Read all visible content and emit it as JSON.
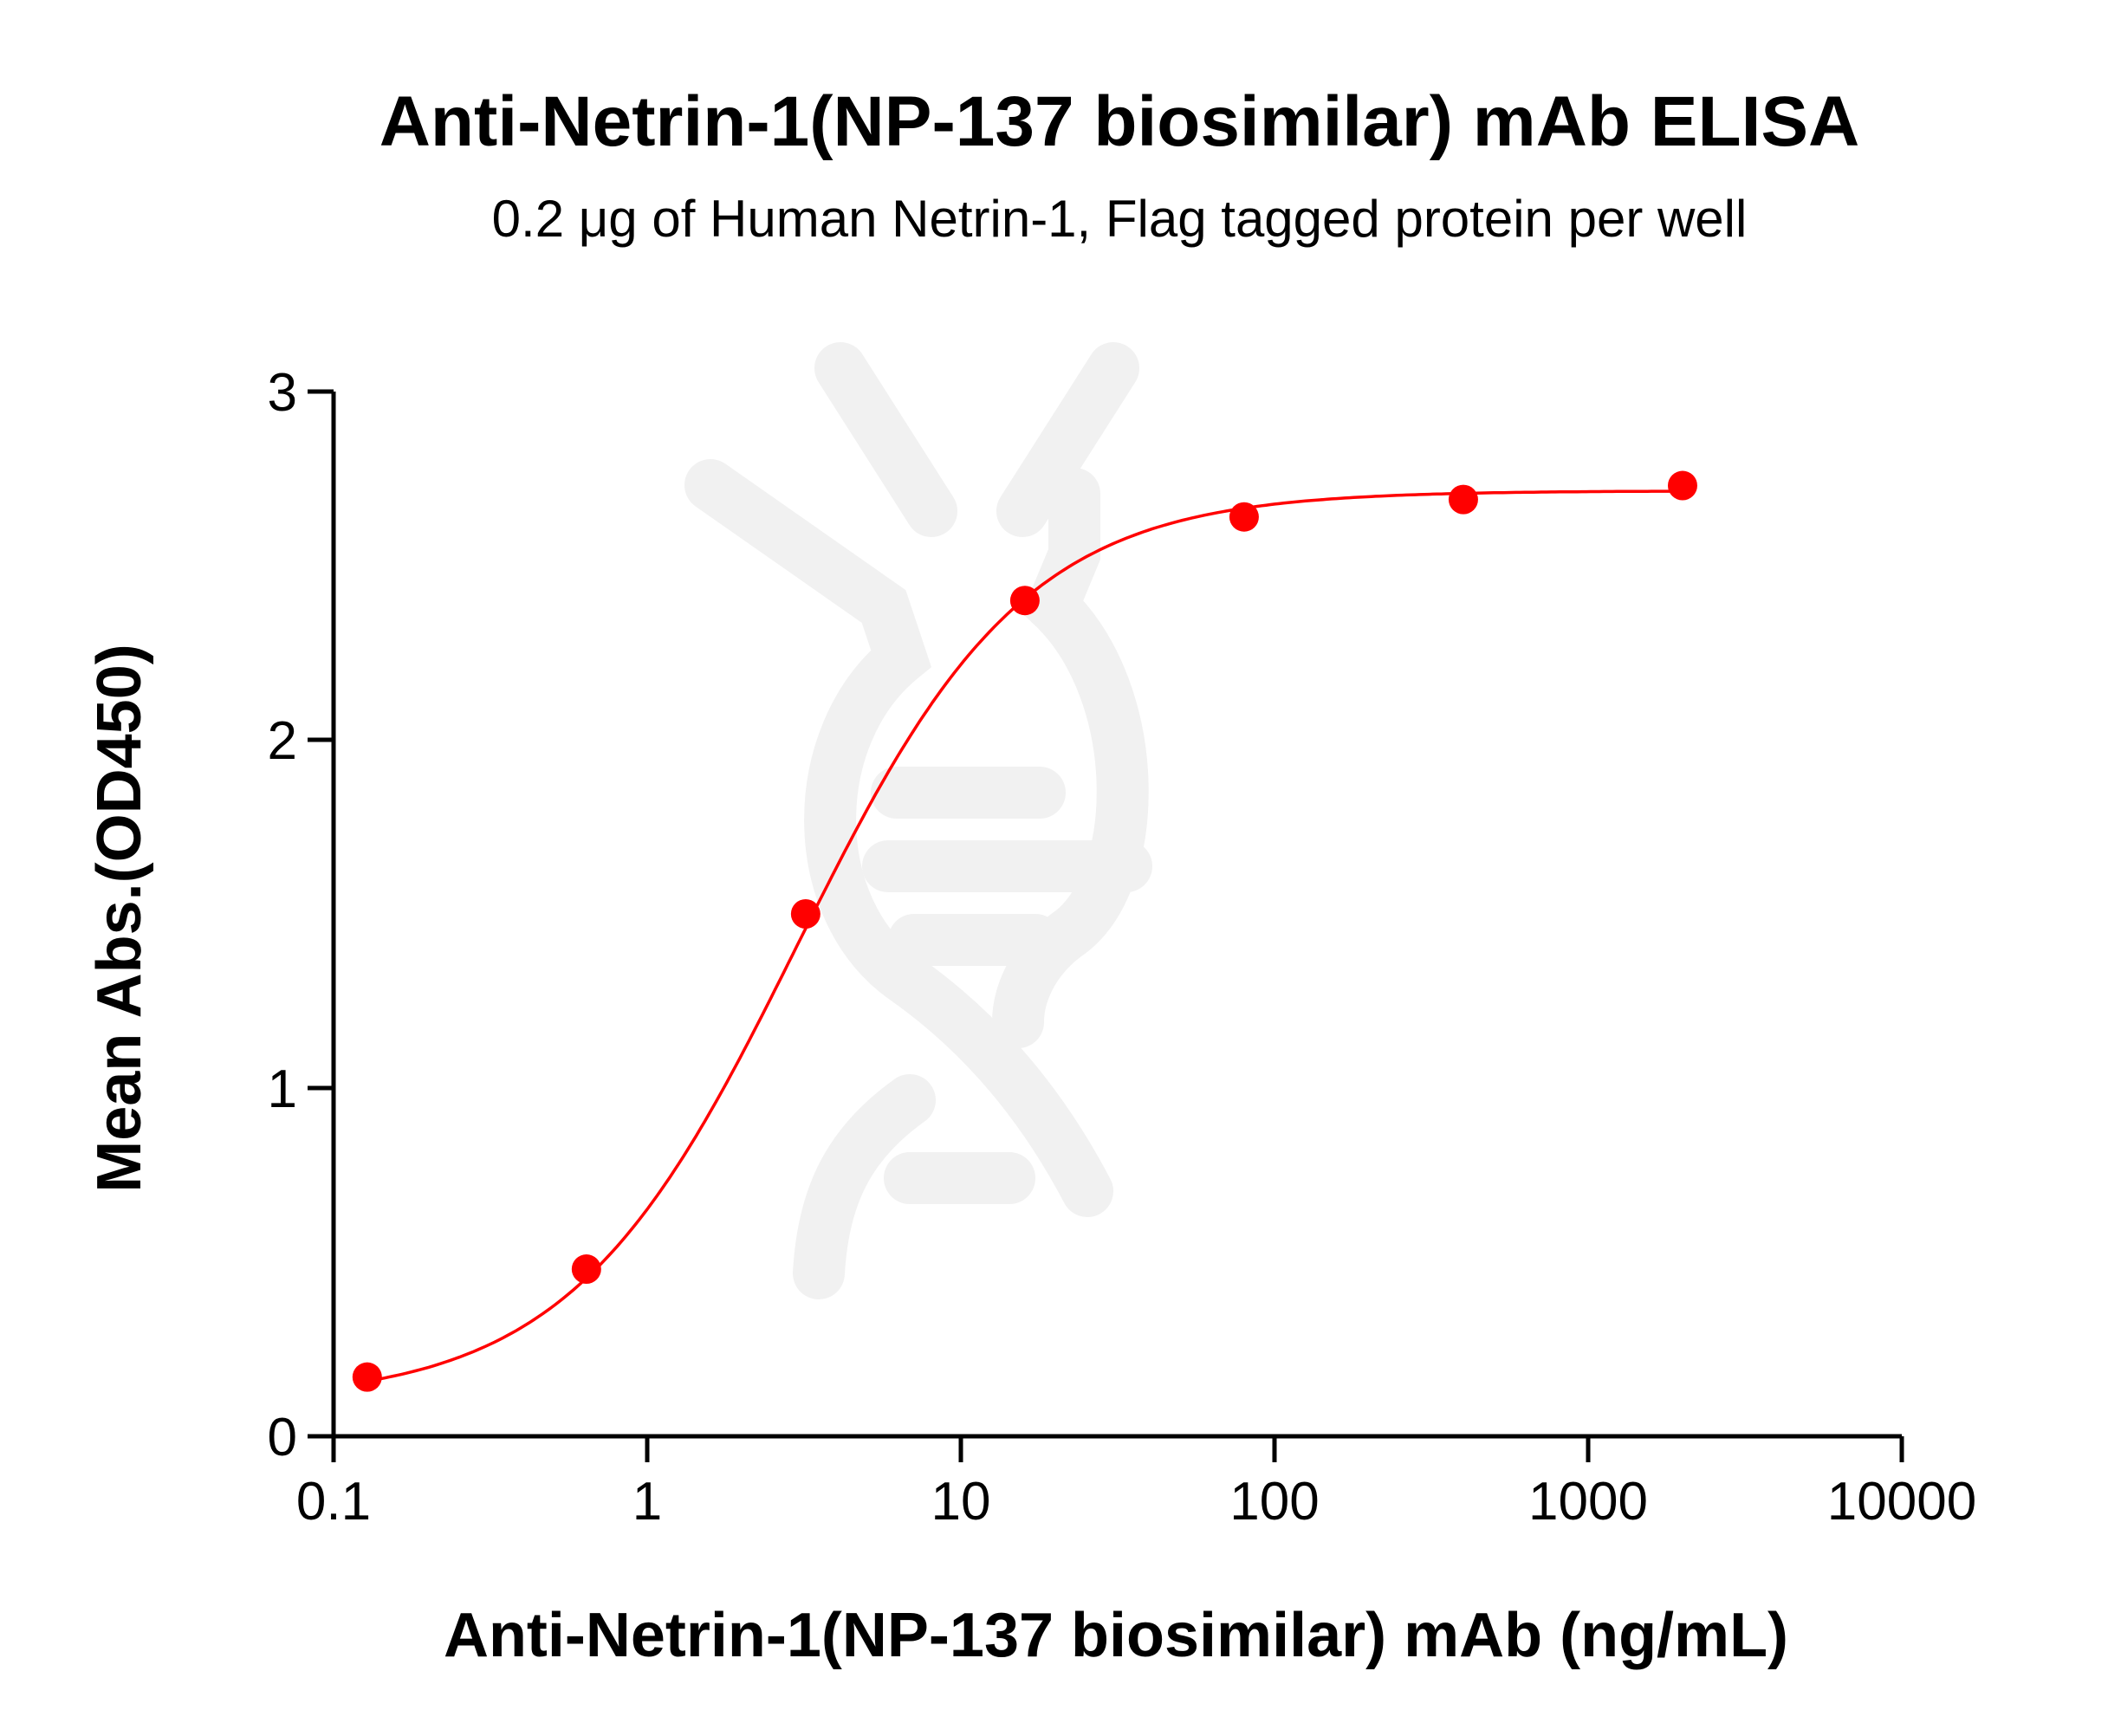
{
  "chart_data": {
    "type": "scatter",
    "title": "Anti-Netrin-1(NP-137 biosimilar) mAb ELISA",
    "subtitle": "0.2 μg of Human Netrin-1, Flag tagged protein per well",
    "xlabel": "Anti-Netrin-1(NP-137 biosimilar) mAb (ng/mL)",
    "ylabel": "Mean Abs.(OD450)",
    "x_scale": "log",
    "xlim": [
      0.1,
      10000
    ],
    "ylim": [
      0,
      3
    ],
    "x_ticks": [
      "0.1",
      "1",
      "10",
      "100",
      "1000",
      "10000"
    ],
    "x_tick_values": [
      0.1,
      1,
      10,
      100,
      1000,
      10000
    ],
    "y_ticks": [
      "0",
      "1",
      "2",
      "3"
    ],
    "y_tick_values": [
      0,
      1,
      2,
      3
    ],
    "grid": false,
    "series": [
      {
        "x": [
          0.128,
          0.64,
          3.2,
          16,
          80,
          400,
          2000
        ],
        "y": [
          0.17,
          0.48,
          1.5,
          2.4,
          2.64,
          2.69,
          2.73
        ],
        "color": "#ff0000",
        "fit": "4-parameter logistic curve"
      }
    ],
    "watermark": "light gray DNA helix logo"
  }
}
